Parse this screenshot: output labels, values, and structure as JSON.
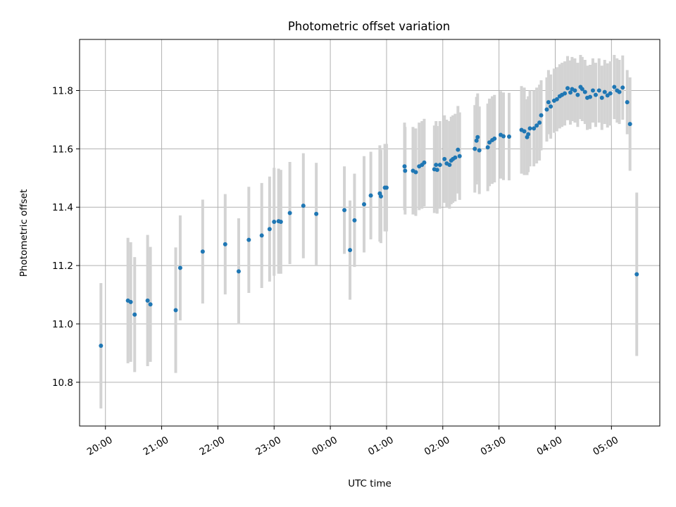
{
  "chart_data": {
    "type": "scatter",
    "title": "Photometric offset variation",
    "xlabel": "UTC time",
    "ylabel": "Photometric offset",
    "x_unit": "hours",
    "xlim": [
      19.54,
      29.86
    ],
    "ylim": [
      10.65,
      11.975
    ],
    "x_ticks": [
      {
        "value": 20,
        "label": "20:00"
      },
      {
        "value": 21,
        "label": "21:00"
      },
      {
        "value": 22,
        "label": "22:00"
      },
      {
        "value": 23,
        "label": "23:00"
      },
      {
        "value": 24,
        "label": "00:00"
      },
      {
        "value": 25,
        "label": "01:00"
      },
      {
        "value": 26,
        "label": "02:00"
      },
      {
        "value": 27,
        "label": "03:00"
      },
      {
        "value": 28,
        "label": "04:00"
      },
      {
        "value": 29,
        "label": "05:00"
      }
    ],
    "y_ticks": [
      {
        "value": 10.8,
        "label": "10.8"
      },
      {
        "value": 11.0,
        "label": "11.0"
      },
      {
        "value": 11.2,
        "label": "11.2"
      },
      {
        "value": 11.4,
        "label": "11.4"
      },
      {
        "value": 11.6,
        "label": "11.6"
      },
      {
        "value": 11.8,
        "label": "11.8"
      }
    ],
    "grid": true,
    "point_color": "#1f77b4",
    "errorbar_color": "#d3d3d3",
    "points": [
      [
        19.92,
        10.925,
        0.215
      ],
      [
        20.4,
        11.08,
        0.215
      ],
      [
        20.45,
        11.075,
        0.205
      ],
      [
        20.52,
        11.032,
        0.197
      ],
      [
        20.75,
        11.08,
        0.225
      ],
      [
        20.8,
        11.067,
        0.197
      ],
      [
        21.25,
        11.047,
        0.215
      ],
      [
        21.33,
        11.192,
        0.18
      ],
      [
        21.73,
        11.248,
        0.178
      ],
      [
        22.13,
        11.273,
        0.172
      ],
      [
        22.37,
        11.18,
        0.182
      ],
      [
        22.55,
        11.288,
        0.182
      ],
      [
        22.78,
        11.303,
        0.18
      ],
      [
        22.92,
        11.325,
        0.18
      ],
      [
        23.0,
        11.35,
        0.185
      ],
      [
        23.08,
        11.352,
        0.18
      ],
      [
        23.12,
        11.35,
        0.178
      ],
      [
        23.28,
        11.38,
        0.175
      ],
      [
        23.52,
        11.405,
        0.18
      ],
      [
        23.75,
        11.377,
        0.175
      ],
      [
        24.25,
        11.39,
        0.15
      ],
      [
        24.35,
        11.253,
        0.17
      ],
      [
        24.43,
        11.355,
        0.16
      ],
      [
        24.6,
        11.41,
        0.165
      ],
      [
        24.72,
        11.44,
        0.15
      ],
      [
        24.88,
        11.447,
        0.165
      ],
      [
        24.9,
        11.437,
        0.16
      ],
      [
        24.97,
        11.467,
        0.15
      ],
      [
        25.0,
        11.467,
        0.15
      ],
      [
        25.32,
        11.54,
        0.15
      ],
      [
        25.33,
        11.525,
        0.15
      ],
      [
        25.47,
        11.525,
        0.15
      ],
      [
        25.52,
        11.52,
        0.15
      ],
      [
        25.58,
        11.54,
        0.15
      ],
      [
        25.63,
        11.545,
        0.15
      ],
      [
        25.67,
        11.553,
        0.15
      ],
      [
        25.85,
        11.53,
        0.15
      ],
      [
        25.88,
        11.545,
        0.15
      ],
      [
        25.9,
        11.528,
        0.15
      ],
      [
        25.95,
        11.545,
        0.15
      ],
      [
        26.03,
        11.565,
        0.15
      ],
      [
        26.07,
        11.55,
        0.15
      ],
      [
        26.12,
        11.545,
        0.15
      ],
      [
        26.15,
        11.56,
        0.15
      ],
      [
        26.18,
        11.565,
        0.15
      ],
      [
        26.22,
        11.57,
        0.15
      ],
      [
        26.27,
        11.597,
        0.15
      ],
      [
        26.3,
        11.575,
        0.15
      ],
      [
        26.57,
        11.6,
        0.15
      ],
      [
        26.6,
        11.628,
        0.15
      ],
      [
        26.62,
        11.64,
        0.15
      ],
      [
        26.65,
        11.595,
        0.15
      ],
      [
        26.8,
        11.605,
        0.15
      ],
      [
        26.83,
        11.622,
        0.15
      ],
      [
        26.88,
        11.63,
        0.15
      ],
      [
        26.92,
        11.635,
        0.15
      ],
      [
        27.03,
        11.648,
        0.15
      ],
      [
        27.08,
        11.643,
        0.15
      ],
      [
        27.18,
        11.642,
        0.15
      ],
      [
        27.4,
        11.665,
        0.15
      ],
      [
        27.45,
        11.66,
        0.15
      ],
      [
        27.5,
        11.64,
        0.13
      ],
      [
        27.52,
        11.65,
        0.13
      ],
      [
        27.55,
        11.67,
        0.13
      ],
      [
        27.62,
        11.67,
        0.13
      ],
      [
        27.67,
        11.68,
        0.13
      ],
      [
        27.72,
        11.69,
        0.13
      ],
      [
        27.75,
        11.715,
        0.12
      ],
      [
        27.85,
        11.735,
        0.11
      ],
      [
        27.88,
        11.76,
        0.11
      ],
      [
        27.92,
        11.745,
        0.11
      ],
      [
        27.98,
        11.765,
        0.11
      ],
      [
        28.03,
        11.77,
        0.11
      ],
      [
        28.08,
        11.78,
        0.11
      ],
      [
        28.12,
        11.785,
        0.11
      ],
      [
        28.17,
        11.79,
        0.11
      ],
      [
        28.22,
        11.808,
        0.11
      ],
      [
        28.27,
        11.793,
        0.11
      ],
      [
        28.3,
        11.805,
        0.11
      ],
      [
        28.35,
        11.8,
        0.11
      ],
      [
        28.4,
        11.785,
        0.11
      ],
      [
        28.45,
        11.812,
        0.11
      ],
      [
        28.48,
        11.805,
        0.11
      ],
      [
        28.53,
        11.795,
        0.11
      ],
      [
        28.57,
        11.775,
        0.11
      ],
      [
        28.62,
        11.778,
        0.11
      ],
      [
        28.67,
        11.8,
        0.11
      ],
      [
        28.72,
        11.785,
        0.11
      ],
      [
        28.78,
        11.8,
        0.11
      ],
      [
        28.83,
        11.775,
        0.11
      ],
      [
        28.88,
        11.795,
        0.11
      ],
      [
        28.93,
        11.783,
        0.11
      ],
      [
        28.98,
        11.79,
        0.11
      ],
      [
        29.05,
        11.812,
        0.11
      ],
      [
        29.1,
        11.8,
        0.11
      ],
      [
        29.14,
        11.795,
        0.11
      ],
      [
        29.2,
        11.81,
        0.11
      ],
      [
        29.28,
        11.76,
        0.11
      ],
      [
        29.33,
        11.685,
        0.16
      ],
      [
        29.45,
        11.17,
        0.28
      ]
    ]
  }
}
